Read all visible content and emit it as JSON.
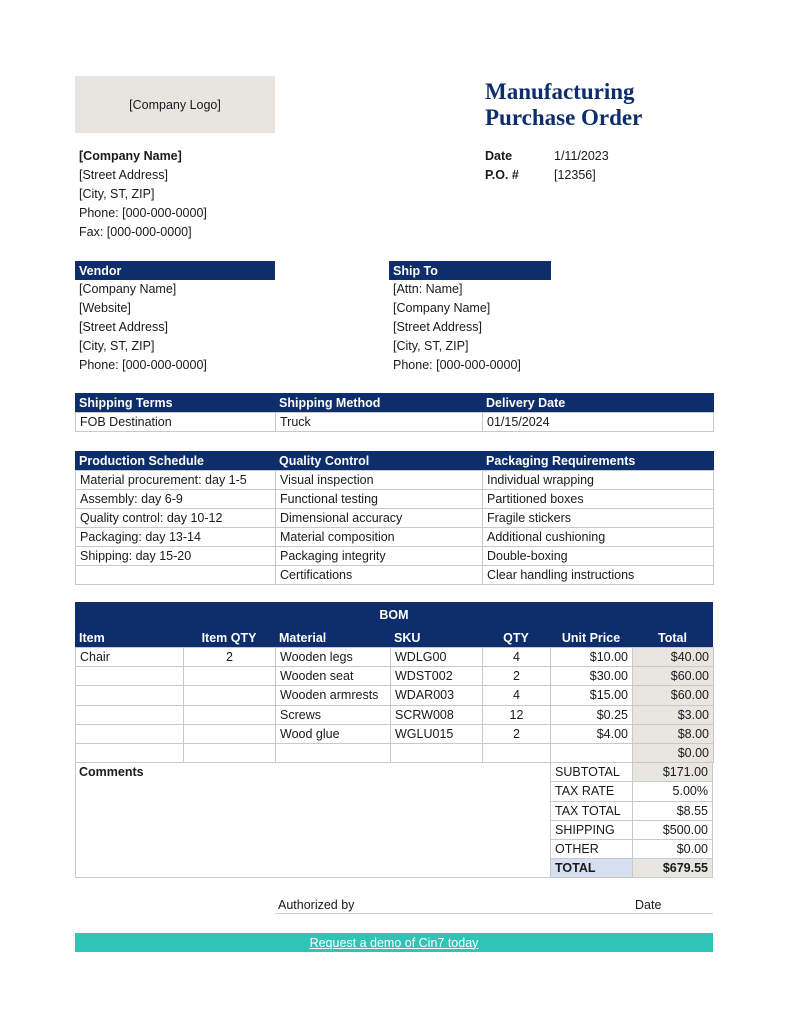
{
  "header": {
    "logo": "[Company Logo]",
    "title": "Manufacturing Purchase Order"
  },
  "company": [
    "[Company Name]",
    "[Street Address]",
    "[City, ST, ZIP]",
    "Phone: [000-000-0000]",
    "Fax: [000-000-0000]"
  ],
  "meta": [
    {
      "label": "Date",
      "value": "1/11/2023"
    },
    {
      "label": "P.O. #",
      "value": "[12356]"
    }
  ],
  "vendor": {
    "heading": "Vendor",
    "lines": [
      "[Company Name]",
      "[Website]",
      "[Street Address]",
      "[City, ST, ZIP]",
      "Phone: [000-000-0000]"
    ]
  },
  "ship_to": {
    "heading": "Ship To",
    "lines": [
      "[Attn: Name]",
      "[Company Name]",
      "[Street Address]",
      "[City, ST, ZIP]",
      "Phone: [000-000-0000]"
    ]
  },
  "shipping": {
    "headers": [
      "Shipping Terms",
      "Shipping Method",
      "Delivery Date"
    ],
    "rows": [
      [
        "FOB Destination",
        "Truck",
        "01/15/2024"
      ]
    ]
  },
  "schedule": {
    "headers": [
      "Production Schedule",
      "Quality Control",
      "Packaging Requirements"
    ],
    "rows": [
      [
        "Material procurement: day 1-5",
        "Visual inspection",
        "Individual wrapping"
      ],
      [
        "Assembly: day 6-9",
        "Functional testing",
        "Partitioned boxes"
      ],
      [
        "Quality control: day 10-12",
        "Dimensional accuracy",
        "Fragile stickers"
      ],
      [
        "Packaging: day 13-14",
        "Material composition",
        "Additional cushioning"
      ],
      [
        "Shipping: day 15-20",
        "Packaging integrity",
        "Double-boxing"
      ],
      [
        null,
        "Certifications",
        "Clear handling instructions"
      ]
    ]
  },
  "bom": {
    "title": "BOM",
    "headers": [
      "Item",
      "Item QTY",
      "Material",
      "SKU",
      "QTY",
      "Unit Price",
      "Total"
    ],
    "rows": [
      [
        "Chair",
        "2",
        "Wooden legs",
        "WDLG00",
        "4",
        "$10.00",
        "$40.00"
      ],
      [
        null,
        null,
        "Wooden seat",
        "WDST002",
        "2",
        "$30.00",
        "$60.00"
      ],
      [
        null,
        null,
        "Wooden armrests",
        "WDAR003",
        "4",
        "$15.00",
        "$60.00"
      ],
      [
        null,
        null,
        "Screws",
        "SCRW008",
        "12",
        "$0.25",
        "$3.00"
      ],
      [
        null,
        null,
        "Wood glue",
        "WGLU015",
        "2",
        "$4.00",
        "$8.00"
      ],
      [
        null,
        null,
        null,
        null,
        null,
        null,
        "$0.00"
      ]
    ],
    "comments": "Comments",
    "totals": [
      {
        "label": "SUBTOTAL",
        "value": "$171.00"
      },
      {
        "label": "TAX RATE",
        "value": "5.00%"
      },
      {
        "label": "TAX TOTAL",
        "value": "$8.55"
      },
      {
        "label": "SHIPPING",
        "value": "$500.00"
      },
      {
        "label": "OTHER",
        "value": "$0.00"
      },
      {
        "label": "TOTAL",
        "value": "$679.55"
      }
    ]
  },
  "footer": {
    "authorized": "Authorized by",
    "date": "Date",
    "link": "Request a demo of Cin7 today"
  }
}
